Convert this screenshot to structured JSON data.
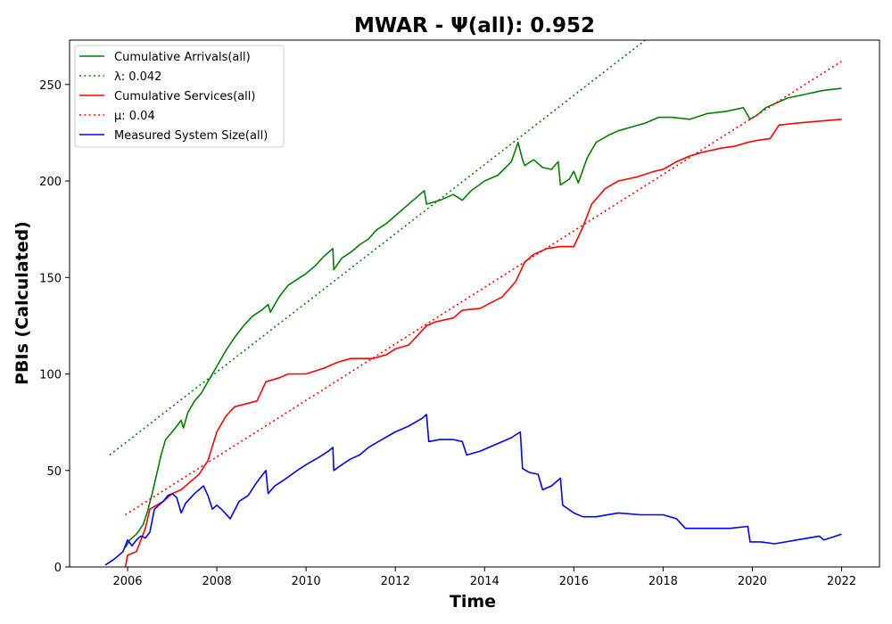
{
  "chart_data": {
    "type": "line",
    "title": "MWAR -  Ψ(all): 0.952",
    "xlabel": "Time",
    "ylabel": "PBIs (Calculated)",
    "xlim": [
      2004.7,
      2022.85
    ],
    "ylim": [
      0,
      273
    ],
    "x_ticks": [
      2006,
      2008,
      2010,
      2012,
      2014,
      2016,
      2018,
      2020,
      2022
    ],
    "y_ticks": [
      0,
      50,
      100,
      150,
      200,
      250
    ],
    "grid": false,
    "legend_position": "top-left",
    "series": [
      {
        "name": "Cumulative Arrivals(all)",
        "style": "solid",
        "color": "#008000",
        "x": [
          2005.95,
          2006.05,
          2006.2,
          2006.35,
          2006.45,
          2006.55,
          2006.65,
          2006.75,
          2006.85,
          2007.0,
          2007.2,
          2007.25,
          2007.35,
          2007.5,
          2007.65,
          2007.75,
          2007.85,
          2008.0,
          2008.2,
          2008.4,
          2008.6,
          2008.8,
          2009.0,
          2009.15,
          2009.2,
          2009.4,
          2009.6,
          2009.8,
          2010.0,
          2010.2,
          2010.4,
          2010.6,
          2010.62,
          2010.8,
          2011.0,
          2011.2,
          2011.4,
          2011.55,
          2011.6,
          2011.8,
          2012.0,
          2012.2,
          2012.4,
          2012.65,
          2012.7,
          2013.0,
          2013.3,
          2013.5,
          2013.7,
          2014.0,
          2014.3,
          2014.6,
          2014.75,
          2014.85,
          2014.9,
          2015.1,
          2015.3,
          2015.5,
          2015.65,
          2015.7,
          2015.9,
          2016.0,
          2016.1,
          2016.3,
          2016.5,
          2016.8,
          2017.0,
          2017.3,
          2017.6,
          2017.9,
          2018.2,
          2018.6,
          2019.0,
          2019.4,
          2019.8,
          2019.95,
          2020.1,
          2020.3,
          2020.5,
          2020.8,
          2021.2,
          2021.6,
          2022.0
        ],
        "y": [
          10,
          14,
          17,
          22,
          29,
          38,
          48,
          58,
          66,
          70,
          76,
          72,
          80,
          86,
          90,
          94,
          98,
          104,
          112,
          119,
          125,
          130,
          133,
          136,
          132,
          140,
          146,
          149,
          152,
          156,
          161,
          165,
          154,
          160,
          163,
          167,
          170,
          174,
          175,
          178,
          182,
          186,
          190,
          195,
          188,
          190,
          193,
          190,
          195,
          200,
          203,
          210,
          220,
          211,
          208,
          211,
          207,
          206,
          210,
          198,
          201,
          205,
          199,
          212,
          220,
          224,
          226,
          228,
          230,
          233,
          233,
          232,
          235,
          236,
          238,
          232,
          234,
          238,
          240,
          243,
          245,
          247,
          248
        ]
      },
      {
        "name": "λ: 0.042",
        "style": "dotted",
        "color": "#008000",
        "x": [
          2005.6,
          2017.6
        ],
        "y": [
          58,
          273
        ]
      },
      {
        "name": "Cumulative Services(all)",
        "style": "solid",
        "color": "#ff0000",
        "x": [
          2005.95,
          2006.0,
          2006.2,
          2006.4,
          2006.5,
          2006.8,
          2007.0,
          2007.2,
          2007.4,
          2007.6,
          2007.8,
          2008.0,
          2008.2,
          2008.4,
          2008.9,
          2009.1,
          2009.4,
          2009.6,
          2010.0,
          2010.4,
          2010.7,
          2011.0,
          2011.5,
          2011.8,
          2012.0,
          2012.3,
          2012.7,
          2012.9,
          2013.3,
          2013.5,
          2013.9,
          2014.4,
          2014.7,
          2014.9,
          2015.1,
          2015.4,
          2015.7,
          2016.0,
          2016.2,
          2016.4,
          2016.7,
          2017.0,
          2017.4,
          2017.8,
          2018.0,
          2018.3,
          2018.6,
          2018.9,
          2019.3,
          2019.6,
          2019.9,
          2020.1,
          2020.4,
          2020.6,
          2021.0,
          2021.5,
          2022.0
        ],
        "y": [
          0,
          6,
          8,
          20,
          30,
          34,
          38,
          40,
          44,
          48,
          55,
          70,
          78,
          83,
          86,
          96,
          98,
          100,
          100,
          103,
          106,
          108,
          108,
          110,
          113,
          115,
          125,
          127,
          129,
          133,
          134,
          140,
          148,
          158,
          162,
          165,
          166,
          166,
          176,
          188,
          196,
          200,
          202,
          205,
          206,
          210,
          213,
          215,
          217,
          218,
          220,
          221,
          222,
          229,
          230,
          231,
          232
        ]
      },
      {
        "name": "μ: 0.04",
        "style": "dotted",
        "color": "#ff0000",
        "x": [
          2005.95,
          2022.0
        ],
        "y": [
          27,
          262
        ]
      },
      {
        "name": "Measured System Size(all)",
        "style": "solid",
        "color": "#0000ff",
        "x": [
          2005.5,
          2005.7,
          2005.9,
          2006.0,
          2006.1,
          2006.2,
          2006.3,
          2006.4,
          2006.5,
          2006.6,
          2006.7,
          2006.8,
          2006.9,
          2007.0,
          2007.1,
          2007.2,
          2007.3,
          2007.5,
          2007.7,
          2007.8,
          2007.9,
          2008.0,
          2008.1,
          2008.3,
          2008.5,
          2008.7,
          2008.9,
          2009.1,
          2009.15,
          2009.3,
          2009.5,
          2009.8,
          2010.0,
          2010.3,
          2010.5,
          2010.6,
          2010.62,
          2010.8,
          2011.0,
          2011.2,
          2011.4,
          2011.7,
          2012.0,
          2012.3,
          2012.6,
          2012.7,
          2012.75,
          2013.0,
          2013.3,
          2013.5,
          2013.6,
          2013.9,
          2014.2,
          2014.6,
          2014.8,
          2014.85,
          2015.0,
          2015.2,
          2015.3,
          2015.5,
          2015.7,
          2015.75,
          2016.0,
          2016.2,
          2016.5,
          2017.0,
          2017.5,
          2018.0,
          2018.3,
          2018.5,
          2019.0,
          2019.5,
          2019.9,
          2019.95,
          2020.2,
          2020.5,
          2021.0,
          2021.5,
          2021.6,
          2022.0
        ],
        "y": [
          1,
          4,
          8,
          14,
          11,
          14,
          16,
          15,
          18,
          30,
          32,
          34,
          37,
          38,
          36,
          28,
          33,
          38,
          42,
          37,
          30,
          32,
          30,
          25,
          34,
          37,
          44,
          50,
          38,
          42,
          45,
          50,
          53,
          57,
          60,
          62,
          50,
          53,
          56,
          58,
          62,
          66,
          70,
          73,
          77,
          79,
          65,
          66,
          66,
          65,
          58,
          60,
          63,
          67,
          70,
          51,
          49,
          48,
          40,
          42,
          46,
          32,
          28,
          26,
          26,
          28,
          27,
          27,
          25,
          20,
          20,
          20,
          21,
          13,
          13,
          12,
          14,
          16,
          14,
          17
        ]
      }
    ]
  },
  "colors": {
    "arrivals": "#008000",
    "services": "#ff0000",
    "system_size": "#0000ff"
  }
}
